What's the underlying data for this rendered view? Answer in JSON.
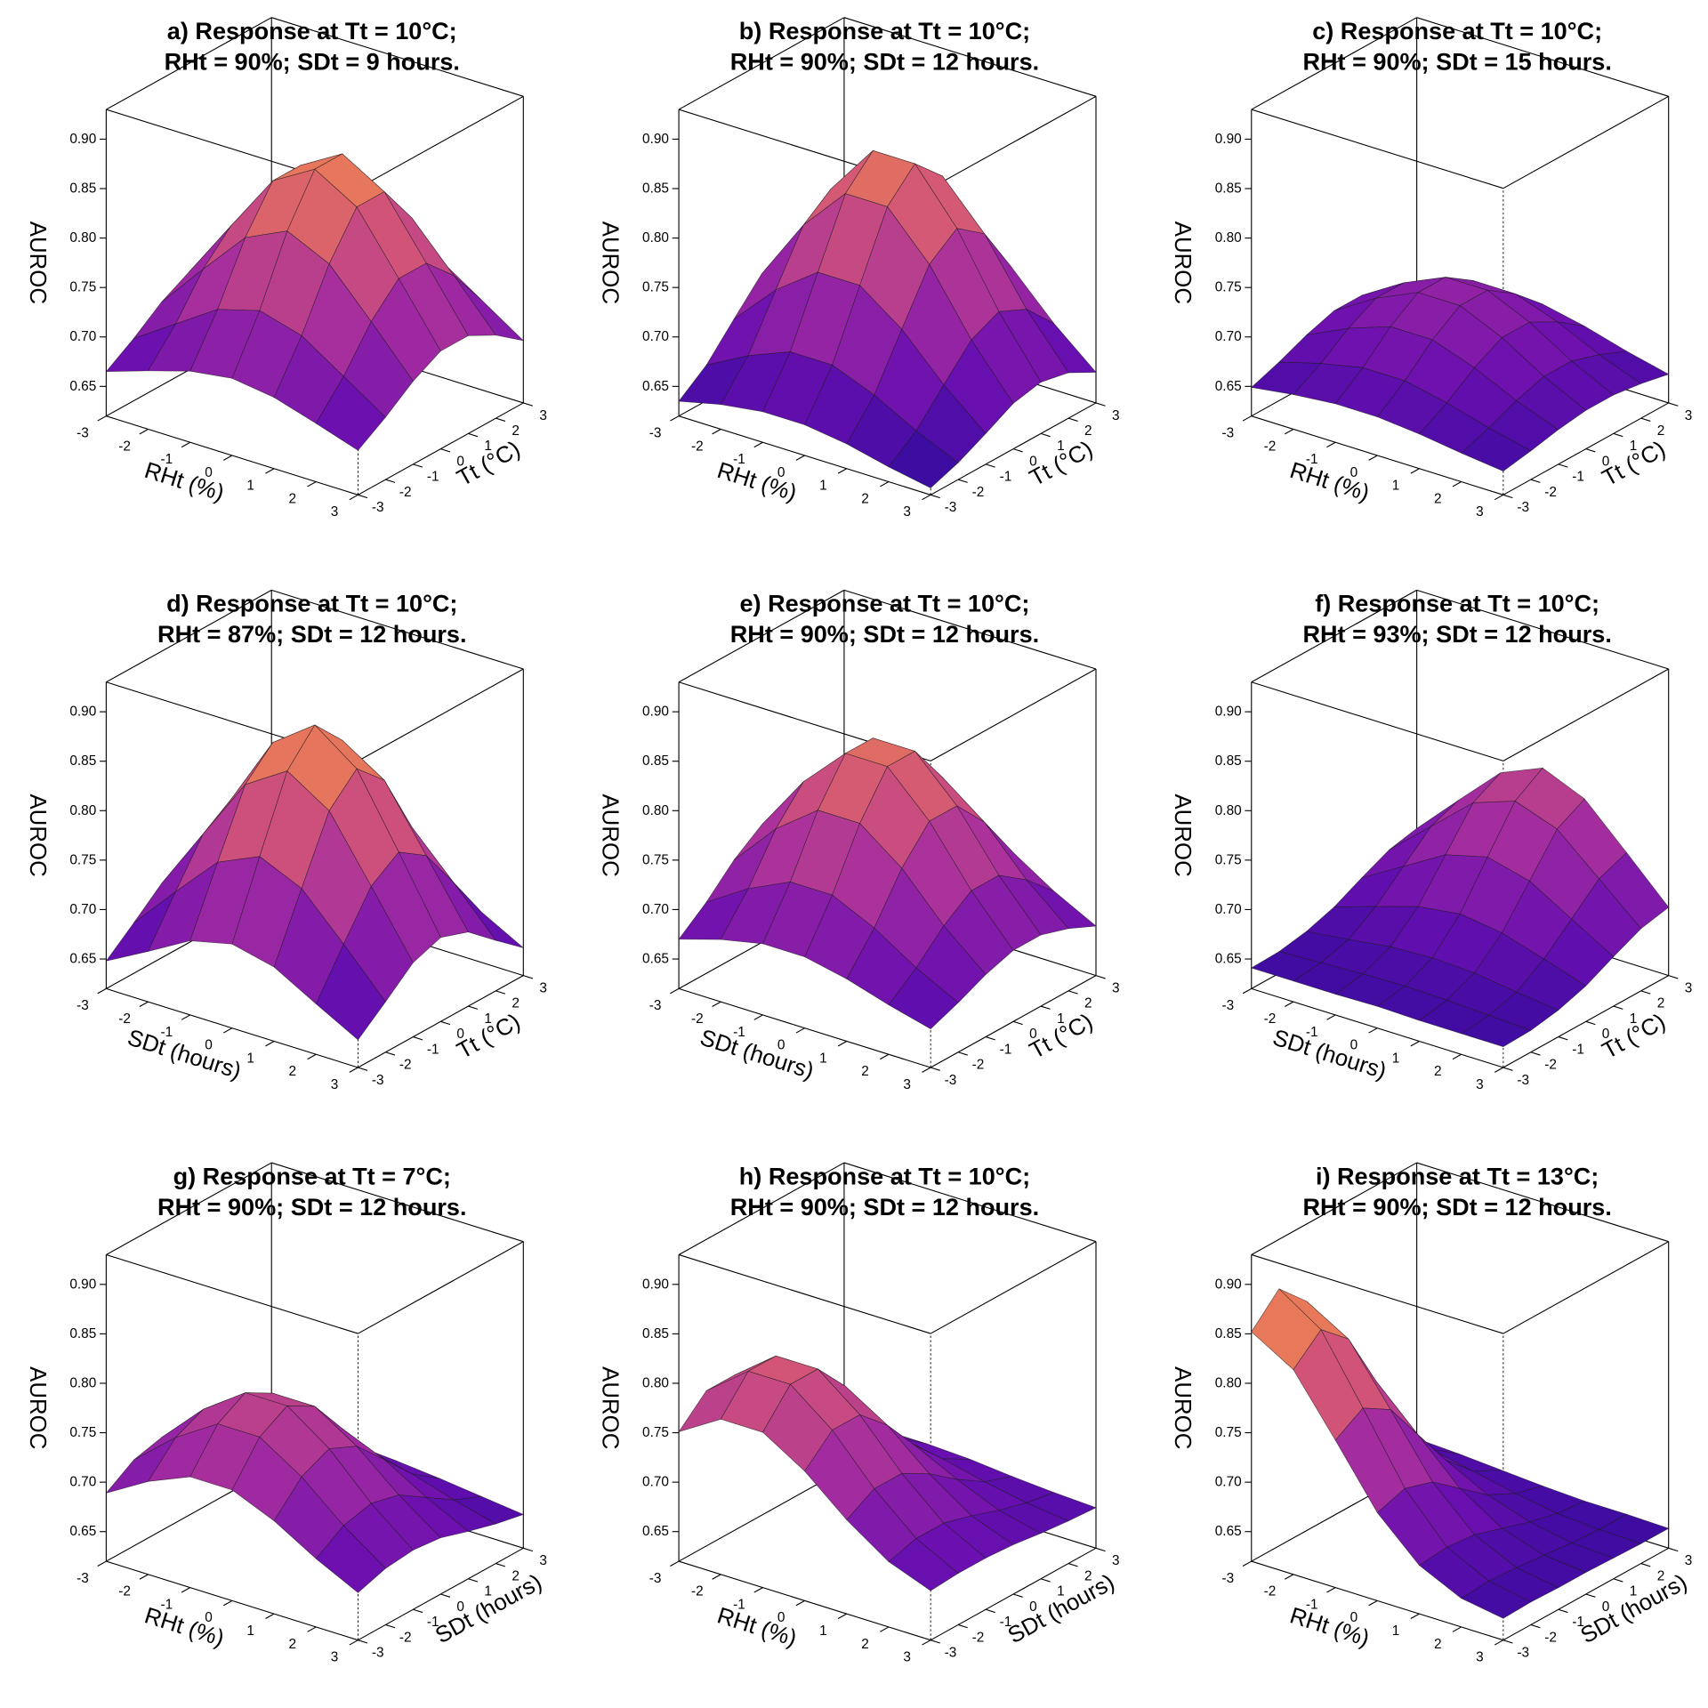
{
  "chart_data": [
    {
      "type": "surface",
      "title": [
        "a) Response at Tt = 10°C;",
        "RHt = 90%; SDt = 9 hours."
      ],
      "xlabel": "RHt (%)",
      "ylabel": "Tt (°C)",
      "zlabel": "AUROC",
      "x": [
        -3,
        -2,
        -1,
        0,
        1,
        2,
        3
      ],
      "y": [
        -3,
        -2,
        -1,
        0,
        1,
        2,
        3
      ],
      "z": [
        [
          0.665,
          0.679,
          0.692,
          0.698,
          0.692,
          0.679,
          0.665
        ],
        [
          0.683,
          0.711,
          0.739,
          0.751,
          0.739,
          0.711,
          0.683
        ],
        [
          0.704,
          0.751,
          0.796,
          0.816,
          0.796,
          0.751,
          0.704
        ],
        [
          0.719,
          0.779,
          0.838,
          0.863,
          0.838,
          0.779,
          0.719
        ],
        [
          0.719,
          0.779,
          0.838,
          0.863,
          0.838,
          0.779,
          0.719
        ],
        [
          0.704,
          0.751,
          0.796,
          0.816,
          0.796,
          0.751,
          0.704
        ],
        [
          0.683,
          0.711,
          0.739,
          0.751,
          0.739,
          0.711,
          0.683
        ]
      ],
      "xlim": [
        -3,
        3
      ],
      "ylim": [
        -3,
        3
      ],
      "zlim": [
        0.62,
        0.93
      ],
      "xticks": [
        -3,
        -2,
        -1,
        0,
        1,
        2,
        3
      ],
      "yticks": [
        -3,
        -2,
        -1,
        0,
        1,
        2,
        3
      ],
      "zticks": [
        0.65,
        {
          "value": 0.7,
          "label": "0.70"
        },
        0.75,
        {
          "value": 0.8,
          "label": "0.80"
        },
        0.85,
        {
          "value": 0.9,
          "label": "0.90"
        }
      ],
      "colormap": [
        "#2a0a9a",
        "#6a0fb0",
        "#a22ba0",
        "#d0527a",
        "#ee8450",
        "#f7b13a"
      ]
    },
    {
      "type": "surface",
      "title": [
        "b) Response at Tt = 10°C;",
        "RHt = 90%; SDt = 12 hours."
      ],
      "xlabel": "RHt (%)",
      "ylabel": "Tt (°C)",
      "zlabel": "AUROC",
      "x": [
        -3,
        -2,
        -1,
        0,
        1,
        2,
        3
      ],
      "y": [
        -3,
        -2,
        -1,
        0,
        1,
        2,
        3
      ],
      "z": [
        [
          0.635,
          0.645,
          0.651,
          0.651,
          0.645,
          0.635,
          0.627
        ],
        [
          0.656,
          0.679,
          0.696,
          0.696,
          0.679,
          0.656,
          0.637
        ],
        [
          0.687,
          0.73,
          0.761,
          0.761,
          0.73,
          0.687,
          0.651
        ],
        [
          0.717,
          0.78,
          0.825,
          0.825,
          0.78,
          0.717,
          0.666
        ],
        [
          0.73,
          0.801,
          0.853,
          0.853,
          0.801,
          0.73,
          0.672
        ],
        [
          0.717,
          0.78,
          0.825,
          0.825,
          0.78,
          0.717,
          0.666
        ],
        [
          0.687,
          0.73,
          0.761,
          0.761,
          0.73,
          0.687,
          0.651
        ]
      ],
      "xlim": [
        -3,
        3
      ],
      "ylim": [
        -3,
        3
      ],
      "zlim": [
        0.62,
        0.93
      ],
      "xticks": [
        -3,
        -2,
        -1,
        0,
        1,
        2,
        3
      ],
      "yticks": [
        -3,
        -2,
        -1,
        0,
        1,
        2,
        3
      ],
      "zticks": [
        0.65,
        {
          "value": 0.7,
          "label": "0.70"
        },
        0.75,
        {
          "value": 0.8,
          "label": "0.80"
        },
        0.85,
        {
          "value": 0.9,
          "label": "0.90"
        }
      ],
      "colormap": [
        "#2a0a9a",
        "#6a0fb0",
        "#a22ba0",
        "#d0527a",
        "#ee8450",
        "#f7b13a"
      ]
    },
    {
      "type": "surface",
      "title": [
        "c) Response at Tt = 10°C;",
        "RHt = 90%; SDt = 15 hours."
      ],
      "xlabel": "RHt (%)",
      "ylabel": "Tt (°C)",
      "zlabel": "AUROC",
      "x": [
        -3,
        -2,
        -1,
        0,
        1,
        2,
        3
      ],
      "y": [
        -3,
        -2,
        -1,
        0,
        1,
        2,
        3
      ],
      "z": [
        [
          0.649,
          0.655,
          0.659,
          0.659,
          0.655,
          0.649,
          0.644
        ],
        [
          0.659,
          0.671,
          0.68,
          0.68,
          0.671,
          0.659,
          0.649
        ],
        [
          0.671,
          0.691,
          0.706,
          0.706,
          0.691,
          0.671,
          0.655
        ],
        [
          0.68,
          0.706,
          0.725,
          0.725,
          0.706,
          0.68,
          0.659
        ],
        [
          0.68,
          0.706,
          0.725,
          0.725,
          0.706,
          0.68,
          0.659
        ],
        [
          0.671,
          0.691,
          0.706,
          0.706,
          0.691,
          0.671,
          0.655
        ],
        [
          0.659,
          0.671,
          0.68,
          0.68,
          0.671,
          0.659,
          0.649
        ]
      ],
      "xlim": [
        -3,
        3
      ],
      "ylim": [
        -3,
        3
      ],
      "zlim": [
        0.62,
        0.93
      ],
      "xticks": [
        -3,
        -2,
        -1,
        0,
        1,
        2,
        3
      ],
      "yticks": [
        -3,
        -2,
        -1,
        0,
        1,
        2,
        3
      ],
      "zticks": [
        0.65,
        {
          "value": 0.7,
          "label": "0.70"
        },
        0.75,
        {
          "value": 0.8,
          "label": "0.80"
        },
        0.85,
        {
          "value": 0.9,
          "label": "0.90"
        }
      ],
      "colormap": [
        "#2a0a9a",
        "#6a0fb0",
        "#a22ba0",
        "#d0527a",
        "#ee8450",
        "#f7b13a"
      ]
    },
    {
      "type": "surface",
      "title": [
        "d) Response at Tt = 10°C;",
        "RHt = 87%; SDt = 12 hours."
      ],
      "xlabel": "SDt (hours)",
      "ylabel": "Tt (°C)",
      "zlabel": "AUROC",
      "x": [
        -3,
        -2,
        -1,
        0,
        1,
        2,
        3
      ],
      "y": [
        -3,
        -2,
        -1,
        0,
        1,
        2,
        3
      ],
      "z": [
        [
          0.648,
          0.671,
          0.695,
          0.705,
          0.695,
          0.671,
          0.648
        ],
        [
          0.671,
          0.716,
          0.759,
          0.778,
          0.759,
          0.716,
          0.671
        ],
        [
          0.695,
          0.759,
          0.822,
          0.849,
          0.822,
          0.759,
          0.695
        ],
        [
          0.705,
          0.778,
          0.849,
          0.88,
          0.849,
          0.778,
          0.705
        ],
        [
          0.695,
          0.759,
          0.822,
          0.849,
          0.822,
          0.759,
          0.695
        ],
        [
          0.671,
          0.716,
          0.759,
          0.778,
          0.759,
          0.716,
          0.671
        ],
        [
          0.648,
          0.671,
          0.695,
          0.705,
          0.695,
          0.671,
          0.648
        ]
      ],
      "xlim": [
        -3,
        3
      ],
      "ylim": [
        -3,
        3
      ],
      "zlim": [
        0.62,
        0.93
      ],
      "xticks": [
        -3,
        -2,
        -1,
        0,
        1,
        2,
        3
      ],
      "yticks": [
        -3,
        -2,
        -1,
        0,
        1,
        2,
        3
      ],
      "zticks": [
        0.65,
        {
          "value": 0.7,
          "label": "0.70"
        },
        0.75,
        {
          "value": 0.8,
          "label": "0.80"
        },
        0.85,
        {
          "value": 0.9,
          "label": "0.90"
        }
      ],
      "colormap": [
        "#2a0a9a",
        "#6a0fb0",
        "#a22ba0",
        "#d0527a",
        "#ee8450",
        "#f7b13a"
      ]
    },
    {
      "type": "surface",
      "title": [
        "e) Response at Tt = 10°C;",
        "RHt = 90%; SDt = 12 hours."
      ],
      "xlabel": "SDt (hours)",
      "ylabel": "Tt (°C)",
      "zlabel": "AUROC",
      "x": [
        -3,
        -2,
        -1,
        0,
        1,
        2,
        3
      ],
      "y": [
        -3,
        -2,
        -1,
        0,
        1,
        2,
        3
      ],
      "z": [
        [
          0.67,
          0.683,
          0.692,
          0.692,
          0.683,
          0.67,
          0.659
        ],
        [
          0.692,
          0.719,
          0.739,
          0.739,
          0.719,
          0.692,
          0.67
        ],
        [
          0.719,
          0.764,
          0.796,
          0.796,
          0.764,
          0.719,
          0.683
        ],
        [
          0.739,
          0.796,
          0.838,
          0.838,
          0.796,
          0.739,
          0.692
        ],
        [
          0.739,
          0.796,
          0.838,
          0.838,
          0.796,
          0.739,
          0.692
        ],
        [
          0.719,
          0.764,
          0.796,
          0.796,
          0.764,
          0.719,
          0.683
        ],
        [
          0.692,
          0.719,
          0.739,
          0.739,
          0.719,
          0.692,
          0.67
        ]
      ],
      "xlim": [
        -3,
        3
      ],
      "ylim": [
        -3,
        3
      ],
      "zlim": [
        0.62,
        0.93
      ],
      "xticks": [
        -3,
        -2,
        -1,
        0,
        1,
        2,
        3
      ],
      "yticks": [
        -3,
        -2,
        -1,
        0,
        1,
        2,
        3
      ],
      "zticks": [
        0.65,
        {
          "value": 0.7,
          "label": "0.70"
        },
        0.75,
        {
          "value": 0.8,
          "label": "0.80"
        },
        0.85,
        {
          "value": 0.9,
          "label": "0.90"
        }
      ],
      "colormap": [
        "#2a0a9a",
        "#6a0fb0",
        "#a22ba0",
        "#d0527a",
        "#ee8450",
        "#f7b13a"
      ]
    },
    {
      "type": "surface",
      "title": [
        "f) Response at Tt = 10°C;",
        "RHt = 93%; SDt = 12 hours."
      ],
      "xlabel": "SDt (hours)",
      "ylabel": "Tt (°C)",
      "zlabel": "AUROC",
      "x": [
        -3,
        -2,
        -1,
        0,
        1,
        2,
        3
      ],
      "y": [
        -3,
        -2,
        -1,
        0,
        1,
        2,
        3
      ],
      "z": [
        [
          0.641,
          0.641,
          0.641,
          0.642,
          0.641,
          0.641,
          0.641
        ],
        [
          0.642,
          0.644,
          0.646,
          0.647,
          0.646,
          0.644,
          0.642
        ],
        [
          0.647,
          0.652,
          0.658,
          0.66,
          0.658,
          0.652,
          0.647
        ],
        [
          0.656,
          0.67,
          0.683,
          0.689,
          0.683,
          0.67,
          0.656
        ],
        [
          0.67,
          0.695,
          0.72,
          0.731,
          0.72,
          0.695,
          0.67
        ],
        [
          0.683,
          0.72,
          0.757,
          0.772,
          0.757,
          0.72,
          0.683
        ],
        [
          0.689,
          0.731,
          0.772,
          0.79,
          0.772,
          0.731,
          0.689
        ]
      ],
      "xlim": [
        -3,
        3
      ],
      "ylim": [
        -3,
        3
      ],
      "zlim": [
        0.62,
        0.93
      ],
      "xticks": [
        -3,
        -2,
        -1,
        0,
        1,
        2,
        3
      ],
      "yticks": [
        -3,
        -2,
        -1,
        0,
        1,
        2,
        3
      ],
      "zticks": [
        0.65,
        {
          "value": 0.7,
          "label": "0.70"
        },
        0.75,
        {
          "value": 0.8,
          "label": "0.80"
        },
        0.85,
        {
          "value": 0.9,
          "label": "0.90"
        }
      ],
      "colormap": [
        "#2a0a9a",
        "#6a0fb0",
        "#a22ba0",
        "#d0527a",
        "#ee8450",
        "#f7b13a"
      ]
    },
    {
      "type": "surface",
      "title": [
        "g) Response at Tt = 7°C;",
        "RHt = 90%; SDt = 12 hours."
      ],
      "xlabel": "RHt (%)",
      "ylabel": "SDt (hours)",
      "zlabel": "AUROC",
      "x": [
        -3,
        -2,
        -1,
        0,
        1,
        2,
        3
      ],
      "y": [
        -3,
        -2,
        -1,
        0,
        1,
        2,
        3
      ],
      "z": [
        [
          0.689,
          0.714,
          0.732,
          0.732,
          0.714,
          0.689,
          0.668
        ],
        [
          0.707,
          0.743,
          0.77,
          0.77,
          0.743,
          0.707,
          0.677
        ],
        [
          0.714,
          0.756,
          0.786,
          0.786,
          0.756,
          0.714,
          0.68
        ],
        [
          0.707,
          0.743,
          0.77,
          0.77,
          0.743,
          0.707,
          0.677
        ],
        [
          0.689,
          0.714,
          0.732,
          0.732,
          0.714,
          0.689,
          0.668
        ],
        [
          0.671,
          0.684,
          0.694,
          0.694,
          0.684,
          0.671,
          0.66
        ],
        [
          0.659,
          0.664,
          0.668,
          0.668,
          0.664,
          0.659,
          0.654
        ]
      ],
      "xlim": [
        -3,
        3
      ],
      "ylim": [
        -3,
        3
      ],
      "zlim": [
        0.62,
        0.93
      ],
      "xticks": [
        -3,
        -2,
        -1,
        0,
        1,
        2,
        3
      ],
      "yticks": [
        -3,
        -2,
        -1,
        0,
        1,
        2,
        3
      ],
      "zticks": [
        0.65,
        {
          "value": 0.7,
          "label": "0.70"
        },
        0.75,
        {
          "value": 0.8,
          "label": "0.80"
        },
        0.85,
        {
          "value": 0.9,
          "label": "0.90"
        }
      ],
      "colormap": [
        "#2a0a9a",
        "#6a0fb0",
        "#a22ba0",
        "#d0527a",
        "#ee8450",
        "#f7b13a"
      ]
    },
    {
      "type": "surface",
      "title": [
        "h) Response at Tt = 10°C;",
        "RHt = 90%; SDt = 12 hours."
      ],
      "xlabel": "RHt (%)",
      "ylabel": "SDt (hours)",
      "zlabel": "AUROC",
      "x": [
        -3,
        -2,
        -1,
        0,
        1,
        2,
        3
      ],
      "y": [
        -3,
        -2,
        -1,
        0,
        1,
        2,
        3
      ],
      "z": [
        [
          0.751,
          0.777,
          0.777,
          0.751,
          0.715,
          0.686,
          0.67
        ],
        [
          0.777,
          0.81,
          0.81,
          0.777,
          0.731,
          0.694,
          0.672
        ],
        [
          0.777,
          0.81,
          0.81,
          0.777,
          0.731,
          0.694,
          0.672
        ],
        [
          0.751,
          0.777,
          0.777,
          0.751,
          0.715,
          0.686,
          0.67
        ],
        [
          0.715,
          0.731,
          0.731,
          0.715,
          0.694,
          0.676,
          0.666
        ],
        [
          0.686,
          0.694,
          0.694,
          0.686,
          0.676,
          0.668,
          0.663
        ],
        [
          0.67,
          0.672,
          0.672,
          0.67,
          0.666,
          0.663,
          0.661
        ]
      ],
      "xlim": [
        -3,
        3
      ],
      "ylim": [
        -3,
        3
      ],
      "zlim": [
        0.62,
        0.93
      ],
      "xticks": [
        -3,
        -2,
        -1,
        0,
        1,
        2,
        3
      ],
      "yticks": [
        -3,
        -2,
        -1,
        0,
        1,
        2,
        3
      ],
      "zticks": [
        0.65,
        {
          "value": 0.7,
          "label": "0.70"
        },
        0.75,
        {
          "value": 0.8,
          "label": "0.80"
        },
        0.85,
        {
          "value": 0.9,
          "label": "0.90"
        }
      ],
      "colormap": [
        "#2a0a9a",
        "#6a0fb0",
        "#a22ba0",
        "#d0527a",
        "#ee8450",
        "#f7b13a"
      ]
    },
    {
      "type": "surface",
      "title": [
        "i) Response at Tt = 13°C;",
        "RHt = 90%; SDt = 12 hours."
      ],
      "xlabel": "RHt (%)",
      "ylabel": "SDt (hours)",
      "zlabel": "AUROC",
      "x": [
        -3,
        -2,
        -1,
        0,
        1,
        2,
        3
      ],
      "y": [
        -3,
        -2,
        -1,
        0,
        1,
        2,
        3
      ],
      "z": [
        [
          0.852,
          0.827,
          0.769,
          0.709,
          0.669,
          0.649,
          0.642
        ],
        [
          0.88,
          0.852,
          0.786,
          0.718,
          0.672,
          0.651,
          0.643
        ],
        [
          0.852,
          0.827,
          0.769,
          0.709,
          0.669,
          0.649,
          0.642
        ],
        [
          0.786,
          0.769,
          0.728,
          0.687,
          0.66,
          0.646,
          0.642
        ],
        [
          0.718,
          0.709,
          0.687,
          0.665,
          0.651,
          0.643,
          0.641
        ],
        [
          0.672,
          0.669,
          0.66,
          0.651,
          0.644,
          0.641,
          0.64
        ],
        [
          0.651,
          0.649,
          0.646,
          0.643,
          0.641,
          0.641,
          0.64
        ]
      ],
      "xlim": [
        -3,
        3
      ],
      "ylim": [
        -3,
        3
      ],
      "zlim": [
        0.62,
        0.93
      ],
      "xticks": [
        -3,
        -2,
        -1,
        0,
        1,
        2,
        3
      ],
      "yticks": [
        -3,
        -2,
        -1,
        0,
        1,
        2,
        3
      ],
      "zticks": [
        0.65,
        {
          "value": 0.7,
          "label": "0.70"
        },
        0.75,
        {
          "value": 0.8,
          "label": "0.80"
        },
        0.85,
        {
          "value": 0.9,
          "label": "0.90"
        }
      ],
      "colormap": [
        "#2a0a9a",
        "#6a0fb0",
        "#a22ba0",
        "#d0527a",
        "#ee8450",
        "#f7b13a"
      ]
    }
  ]
}
